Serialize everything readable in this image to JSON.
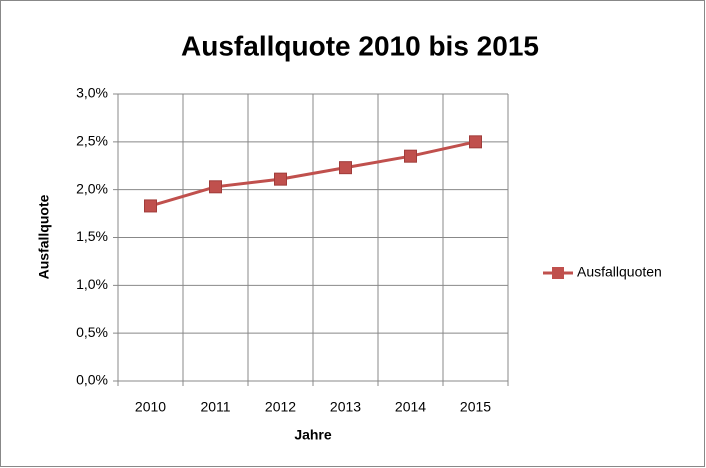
{
  "chart_data": {
    "type": "line",
    "title": "Ausfallquote 2010 bis 2015",
    "x_label": "Jahre",
    "y_label": "Ausfallquote",
    "categories": [
      "2010",
      "2011",
      "2012",
      "2013",
      "2014",
      "2015"
    ],
    "series": [
      {
        "name": "Ausfallquoten",
        "color": "#c0504d",
        "values": [
          1.83,
          2.03,
          2.11,
          2.23,
          2.35,
          2.5
        ]
      }
    ],
    "ylim": [
      0,
      3
    ],
    "yticks": [
      {
        "value": 0,
        "label": "0,0%"
      },
      {
        "value": 0.5,
        "label": "0,5%"
      },
      {
        "value": 1,
        "label": "1,0%"
      },
      {
        "value": 1.5,
        "label": "1,5%"
      },
      {
        "value": 2,
        "label": "2,0%"
      },
      {
        "value": 2.5,
        "label": "2,5%"
      },
      {
        "value": 3,
        "label": "3,0%"
      }
    ],
    "grid": true,
    "legend": "right"
  }
}
